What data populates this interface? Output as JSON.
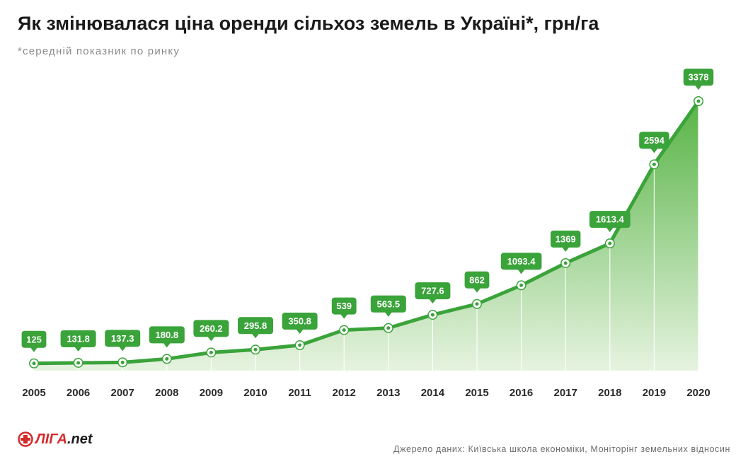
{
  "header": {
    "title": "Як змінювалася ціна оренди сільхоз земель в Україні*, грн/га",
    "subtitle": "*середній показник по ринку"
  },
  "footer": {
    "logo_main": "ЛІГА",
    "logo_suffix": ".net",
    "source": "Джерело даних: Київська школа економіки, Моніторінг земельних відносин"
  },
  "colors": {
    "accent": "#3aa33a",
    "area_top": "#58b446",
    "area_bottom": "#e6f3e0",
    "brand": "#d42b2b"
  },
  "chart_data": {
    "type": "area",
    "title": "Як змінювалася ціна оренди сільхоз земель в Україні*, грн/га",
    "x": [
      "2005",
      "2006",
      "2007",
      "2008",
      "2009",
      "2010",
      "2011",
      "2012",
      "2013",
      "2014",
      "2015",
      "2016",
      "2017",
      "2018",
      "2019",
      "2020"
    ],
    "values": [
      125,
      131.8,
      137.3,
      180.8,
      260.2,
      295.8,
      350.8,
      539,
      563.5,
      727.6,
      862,
      1093.4,
      1369,
      1613.4,
      2594,
      3378
    ],
    "labels": [
      "125",
      "131.8",
      "137.3",
      "180.8",
      "260.2",
      "295.8",
      "350.8",
      "539",
      "563.5",
      "727.6",
      "862",
      "1093.4",
      "1369",
      "1613.4",
      "2594",
      "3378"
    ],
    "grid": false,
    "legend": "none",
    "value_labels": "above-points"
  }
}
